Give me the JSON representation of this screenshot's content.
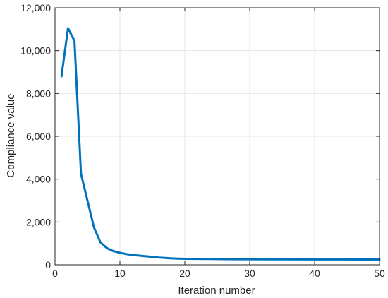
{
  "chart_data": {
    "type": "line",
    "title": "",
    "xlabel": "Iteration number",
    "ylabel": "Compliance value",
    "xlim": [
      0,
      50
    ],
    "ylim": [
      0,
      12000
    ],
    "xticks": [
      0,
      10,
      20,
      30,
      40,
      50
    ],
    "yticks": [
      0,
      2000,
      4000,
      6000,
      8000,
      10000,
      12000
    ],
    "xtick_labels": [
      "0",
      "10",
      "20",
      "30",
      "40",
      "50"
    ],
    "ytick_labels": [
      "0",
      "2,000",
      "4,000",
      "6,000",
      "8,000",
      "10,000",
      "12,000"
    ],
    "grid": true,
    "series": [
      {
        "color": "#0072BD",
        "x": [
          1,
          2,
          3,
          4,
          5,
          6,
          7,
          8,
          9,
          10,
          11,
          12,
          13,
          14,
          15,
          16,
          17,
          18,
          19,
          20,
          22,
          24,
          26,
          28,
          30,
          35,
          40,
          45,
          50
        ],
        "y": [
          8800,
          11050,
          10450,
          4250,
          3000,
          1750,
          1050,
          780,
          640,
          560,
          500,
          460,
          430,
          400,
          370,
          340,
          320,
          300,
          290,
          280,
          275,
          270,
          265,
          260,
          258,
          255,
          252,
          250,
          248
        ]
      }
    ]
  }
}
